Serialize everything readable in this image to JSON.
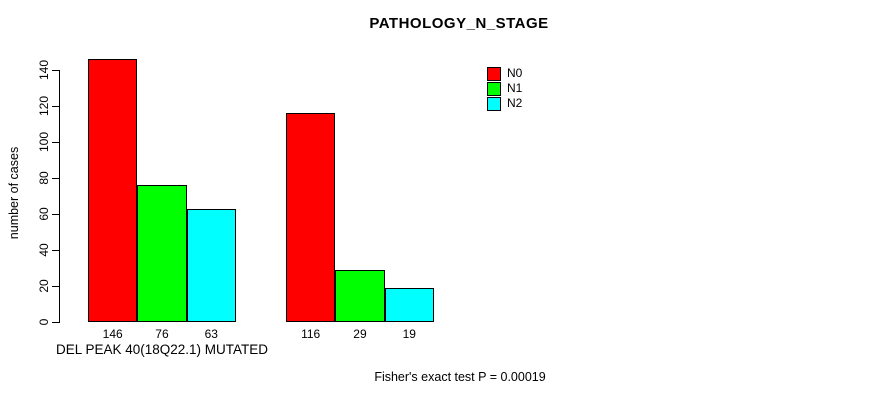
{
  "page": {
    "background": "#ffffff"
  },
  "chart_data": {
    "type": "bar",
    "title": "PATHOLOGY_N_STAGE",
    "ylabel": "number of cases",
    "xlabel": "DEL PEAK 40(18Q22.1) MUTATED",
    "footer": "Fisher's exact test P = 0.00019",
    "ylim": [
      0,
      140
    ],
    "yticks": [
      0,
      20,
      40,
      60,
      80,
      100,
      120,
      140
    ],
    "grid": false,
    "legend_position": "top-right",
    "group_labels": [
      "DEL PEAK 40(18Q22.1) MUTATED",
      ""
    ],
    "series": [
      {
        "name": "N0",
        "color": "#FF0000",
        "values": [
          146,
          116
        ]
      },
      {
        "name": "N1",
        "color": "#00FF00",
        "values": [
          76,
          29
        ]
      },
      {
        "name": "N2",
        "color": "#00FFFF",
        "values": [
          63,
          19
        ]
      }
    ],
    "bar_value_labels": [
      [
        146,
        76,
        63
      ],
      [
        116,
        29,
        19
      ]
    ]
  }
}
